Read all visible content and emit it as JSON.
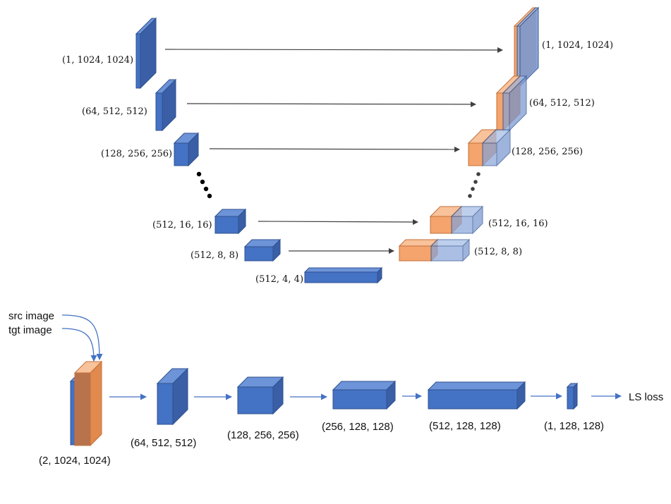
{
  "colors": {
    "front": "#4472C4",
    "top": "#6D93D8",
    "side": "#3A5FA6",
    "stroke": "#2F528F",
    "orange_front": "#F4A46C",
    "orange_top": "#F8C29A",
    "orange_side": "#E08A4E",
    "orange_stroke": "#C5703A",
    "arrow_dark": "#404040",
    "arrow_blue": "#4472C4"
  },
  "unet": {
    "encoder_labels": [
      "(1, 1024, 1024)",
      "(64, 512, 512)",
      "(128, 256, 256)",
      "(512, 16, 16)",
      "(512, 8, 8)",
      "(512, 4, 4)"
    ],
    "decoder_labels": [
      "(1, 1024, 1024)",
      "(64, 512, 512)",
      "(128, 256, 256)",
      "(512, 16, 16)",
      "(512, 8, 8)"
    ]
  },
  "discriminator": {
    "inputs": [
      "src image",
      "tgt image"
    ],
    "labels": [
      "(2, 1024, 1024)",
      "(64, 512, 512)",
      "(128, 256, 256)",
      "(256, 128, 128)",
      "(512, 128, 128)",
      "(1, 128, 128)"
    ],
    "loss": "LS loss"
  }
}
